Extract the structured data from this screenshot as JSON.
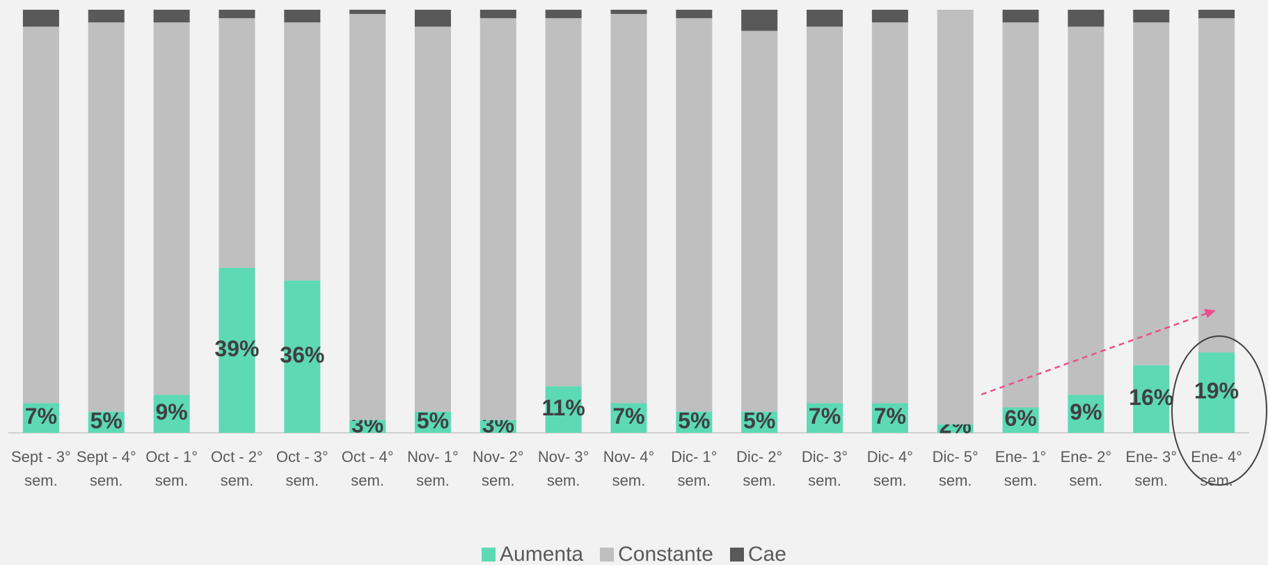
{
  "chart_data": {
    "type": "stacked_bar",
    "categories": [
      "Sept - 3° sem.",
      "Sept - 4° sem.",
      "Oct - 1° sem.",
      "Oct - 2° sem.",
      "Oct - 3° sem.",
      "Oct - 4° sem.",
      "Nov- 1° sem.",
      "Nov- 2° sem.",
      "Nov- 3° sem.",
      "Nov- 4° sem.",
      "Dic- 1° sem.",
      "Dic- 2° sem.",
      "Dic- 3° sem.",
      "Dic- 4° sem.",
      "Dic- 5° sem.",
      "Ene- 1° sem.",
      "Ene- 2° sem.",
      "Ene- 3° sem.",
      "Ene- 4° sem."
    ],
    "series": [
      {
        "name": "Aumenta",
        "color": "#5dd9b4",
        "values": [
          7,
          5,
          9,
          39,
          36,
          3,
          5,
          3,
          11,
          7,
          5,
          5,
          7,
          7,
          2,
          6,
          9,
          16,
          19
        ],
        "value_labels": [
          "7%",
          "5%",
          "9%",
          "39%",
          "36%",
          "3%",
          "5%",
          "3%",
          "11%",
          "7%",
          "5%",
          "5%",
          "7%",
          "7%",
          "2%",
          "6%",
          "9%",
          "16%",
          "19%"
        ]
      },
      {
        "name": "Constante",
        "color": "#bfbfbf",
        "values": [
          89,
          92,
          88,
          59,
          61,
          96,
          91,
          95,
          87,
          92,
          93,
          90,
          89,
          90,
          98,
          91,
          87,
          81,
          79
        ]
      },
      {
        "name": "Cae",
        "color": "#595959",
        "values": [
          4,
          3,
          3,
          2,
          3,
          1,
          4,
          2,
          2,
          1,
          2,
          5,
          4,
          3,
          0,
          3,
          4,
          3,
          2
        ]
      }
    ],
    "ylim": [
      0,
      100
    ],
    "legend": "bottom"
  }
}
